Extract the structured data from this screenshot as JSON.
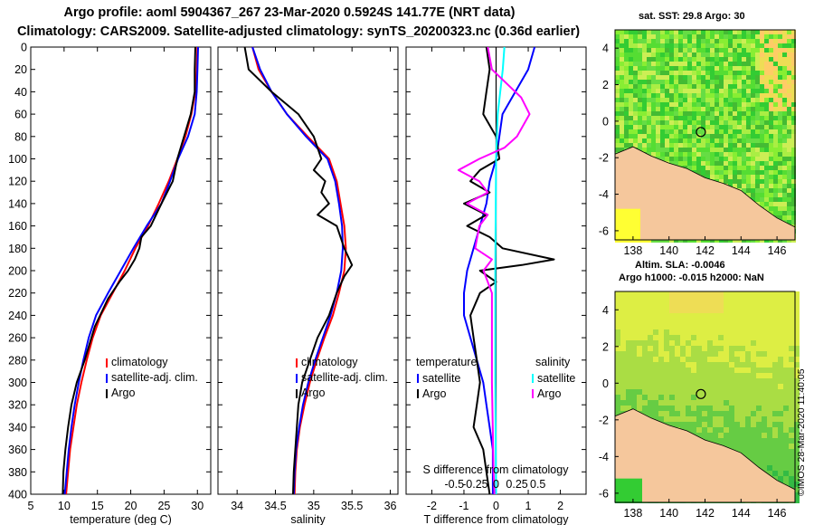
{
  "titles": {
    "line1": "Argo profile: aoml 5904367_267 23-Mar-2020 0.5924S 141.77E (NRT data)",
    "line2": "Climatology: CARS2009. Satellite-adjusted climatology: synTS_20200323.nc (0.36d earlier)"
  },
  "colors": {
    "climatology": "#ff0000",
    "satellite": "#0000ff",
    "argo": "#000000",
    "argo_sal_diff": "#ff00ff",
    "satellite_sal_diff": "#00ffff",
    "land": "#f5c79c"
  },
  "chart_data": [
    {
      "type": "line",
      "name": "temperature",
      "xlabel": "temperature (deg C)",
      "ylabel": "depth",
      "xlim": [
        5,
        32
      ],
      "ylim": [
        400,
        0
      ],
      "xticks": [
        5,
        10,
        15,
        20,
        25,
        30
      ],
      "yticks": [
        0,
        20,
        40,
        60,
        80,
        100,
        120,
        140,
        160,
        180,
        200,
        220,
        240,
        260,
        280,
        300,
        320,
        340,
        360,
        380,
        400
      ],
      "legend": [
        "climatology",
        "satellite-adj. clim.",
        "Argo"
      ],
      "series": [
        {
          "name": "climatology",
          "color": "#ff0000",
          "points": [
            [
              30.0,
              0
            ],
            [
              29.9,
              20
            ],
            [
              29.7,
              40
            ],
            [
              29.1,
              60
            ],
            [
              28.2,
              80
            ],
            [
              27.0,
              100
            ],
            [
              25.7,
              120
            ],
            [
              24.2,
              140
            ],
            [
              22.6,
              160
            ],
            [
              20.7,
              180
            ],
            [
              19.1,
              200
            ],
            [
              17.3,
              220
            ],
            [
              15.5,
              240
            ],
            [
              14.3,
              260
            ],
            [
              13.4,
              280
            ],
            [
              12.6,
              300
            ],
            [
              11.9,
              320
            ],
            [
              11.4,
              340
            ],
            [
              10.9,
              360
            ],
            [
              10.6,
              380
            ],
            [
              10.3,
              400
            ]
          ]
        },
        {
          "name": "satellite-adj. clim.",
          "color": "#0000ff",
          "points": [
            [
              30.1,
              0
            ],
            [
              30.0,
              20
            ],
            [
              29.9,
              40
            ],
            [
              29.6,
              60
            ],
            [
              28.6,
              80
            ],
            [
              27.1,
              100
            ],
            [
              25.9,
              120
            ],
            [
              24.6,
              140
            ],
            [
              22.4,
              160
            ],
            [
              20.4,
              180
            ],
            [
              18.5,
              200
            ],
            [
              16.6,
              220
            ],
            [
              14.8,
              240
            ],
            [
              13.7,
              260
            ],
            [
              12.9,
              280
            ],
            [
              12.2,
              300
            ],
            [
              11.6,
              320
            ],
            [
              11.1,
              340
            ],
            [
              10.7,
              360
            ],
            [
              10.4,
              380
            ],
            [
              10.1,
              400
            ]
          ]
        },
        {
          "name": "Argo",
          "color": "#000000",
          "points": [
            [
              29.7,
              0
            ],
            [
              29.6,
              20
            ],
            [
              29.6,
              40
            ],
            [
              29.0,
              60
            ],
            [
              28.0,
              80
            ],
            [
              27.0,
              100
            ],
            [
              26.3,
              120
            ],
            [
              24.6,
              140
            ],
            [
              23.0,
              160
            ],
            [
              21.6,
              170
            ],
            [
              21.3,
              180
            ],
            [
              20.6,
              190
            ],
            [
              19.6,
              200
            ],
            [
              18.3,
              210
            ],
            [
              16.6,
              225
            ],
            [
              14.6,
              250
            ],
            [
              13.1,
              280
            ],
            [
              11.9,
              300
            ],
            [
              11.1,
              320
            ],
            [
              10.6,
              340
            ],
            [
              10.2,
              360
            ],
            [
              9.9,
              380
            ],
            [
              9.8,
              400
            ]
          ]
        }
      ]
    },
    {
      "type": "line",
      "name": "salinity",
      "xlabel": "salinity",
      "xlim": [
        33.75,
        36.1
      ],
      "ylim": [
        400,
        0
      ],
      "xticks": [
        34,
        34.5,
        35,
        35.5,
        36
      ],
      "legend": [
        "climatology",
        "satellite-adj. clim.",
        "Argo"
      ],
      "series": [
        {
          "name": "climatology",
          "color": "#ff0000",
          "points": [
            [
              34.2,
              0
            ],
            [
              34.28,
              20
            ],
            [
              34.45,
              40
            ],
            [
              34.65,
              60
            ],
            [
              34.92,
              80
            ],
            [
              35.2,
              100
            ],
            [
              35.3,
              120
            ],
            [
              35.35,
              140
            ],
            [
              35.4,
              160
            ],
            [
              35.42,
              180
            ],
            [
              35.4,
              200
            ],
            [
              35.33,
              220
            ],
            [
              35.25,
              240
            ],
            [
              35.14,
              260
            ],
            [
              35.04,
              280
            ],
            [
              34.95,
              300
            ],
            [
              34.88,
              320
            ],
            [
              34.82,
              340
            ],
            [
              34.78,
              360
            ],
            [
              34.76,
              380
            ],
            [
              34.75,
              400
            ]
          ]
        },
        {
          "name": "satellite-adj. clim.",
          "color": "#0000ff",
          "points": [
            [
              34.2,
              0
            ],
            [
              34.3,
              20
            ],
            [
              34.45,
              40
            ],
            [
              34.65,
              60
            ],
            [
              34.9,
              80
            ],
            [
              35.18,
              100
            ],
            [
              35.28,
              120
            ],
            [
              35.33,
              140
            ],
            [
              35.37,
              160
            ],
            [
              35.38,
              180
            ],
            [
              35.36,
              200
            ],
            [
              35.3,
              220
            ],
            [
              35.22,
              240
            ],
            [
              35.12,
              260
            ],
            [
              35.02,
              280
            ],
            [
              34.93,
              300
            ],
            [
              34.86,
              320
            ],
            [
              34.81,
              340
            ],
            [
              34.77,
              360
            ],
            [
              34.75,
              380
            ],
            [
              34.74,
              400
            ]
          ]
        },
        {
          "name": "Argo",
          "color": "#000000",
          "points": [
            [
              34.1,
              0
            ],
            [
              34.15,
              20
            ],
            [
              34.45,
              40
            ],
            [
              34.8,
              60
            ],
            [
              35.0,
              80
            ],
            [
              35.05,
              90
            ],
            [
              35.1,
              100
            ],
            [
              35.0,
              110
            ],
            [
              35.15,
              120
            ],
            [
              35.1,
              130
            ],
            [
              35.2,
              140
            ],
            [
              35.05,
              150
            ],
            [
              35.3,
              160
            ],
            [
              35.35,
              170
            ],
            [
              35.4,
              180
            ],
            [
              35.5,
              195
            ],
            [
              35.4,
              205
            ],
            [
              35.3,
              220
            ],
            [
              35.2,
              240
            ],
            [
              35.05,
              260
            ],
            [
              34.95,
              280
            ],
            [
              34.85,
              300
            ],
            [
              34.8,
              320
            ],
            [
              34.78,
              340
            ],
            [
              34.76,
              360
            ],
            [
              34.74,
              380
            ],
            [
              34.73,
              400
            ]
          ]
        }
      ]
    },
    {
      "type": "line",
      "name": "difference",
      "xlabel": "T difference from climatology",
      "xlim": [
        -2.8,
        2.8
      ],
      "ylim": [
        400,
        0
      ],
      "xticks": [
        -2,
        -1,
        0,
        1,
        2
      ],
      "secondary_axis": {
        "label": "S difference from climatology",
        "ticks": [
          -0.5,
          -0.25,
          0,
          0.25,
          0.5
        ]
      },
      "legend_temperature": {
        "title": "temperature",
        "entries": [
          "satellite",
          "Argo"
        ]
      },
      "legend_salinity": {
        "title": "salinity",
        "entries": [
          "satellite",
          "Argo"
        ]
      },
      "series": [
        {
          "name": "temperature satellite",
          "color": "#0000ff",
          "points": [
            [
              1.2,
              0
            ],
            [
              1.0,
              20
            ],
            [
              0.6,
              40
            ],
            [
              0.2,
              60
            ],
            [
              0.1,
              80
            ],
            [
              0.0,
              100
            ],
            [
              -0.2,
              120
            ],
            [
              -0.3,
              140
            ],
            [
              -0.5,
              160
            ],
            [
              -0.7,
              180
            ],
            [
              -0.9,
              200
            ],
            [
              -1.0,
              220
            ],
            [
              -1.0,
              240
            ],
            [
              -0.8,
              260
            ],
            [
              -0.6,
              280
            ],
            [
              -0.4,
              300
            ],
            [
              -0.3,
              320
            ],
            [
              -0.2,
              340
            ],
            [
              -0.1,
              360
            ],
            [
              -0.1,
              380
            ],
            [
              -0.1,
              400
            ]
          ]
        },
        {
          "name": "temperature Argo",
          "color": "#000000",
          "points": [
            [
              -0.3,
              0
            ],
            [
              -0.2,
              20
            ],
            [
              -0.3,
              40
            ],
            [
              -0.4,
              60
            ],
            [
              0.0,
              80
            ],
            [
              0.1,
              100
            ],
            [
              -0.5,
              110
            ],
            [
              -0.8,
              120
            ],
            [
              -0.2,
              130
            ],
            [
              -1.0,
              140
            ],
            [
              -0.3,
              150
            ],
            [
              -0.9,
              160
            ],
            [
              -0.2,
              170
            ],
            [
              0.2,
              180
            ],
            [
              1.8,
              190
            ],
            [
              0.8,
              195
            ],
            [
              -0.5,
              200
            ],
            [
              0.0,
              210
            ],
            [
              -0.5,
              220
            ],
            [
              -0.8,
              240
            ],
            [
              -0.7,
              260
            ],
            [
              -0.6,
              280
            ],
            [
              -0.5,
              300
            ],
            [
              -0.6,
              320
            ],
            [
              -0.7,
              340
            ],
            [
              -0.4,
              360
            ],
            [
              -0.3,
              380
            ],
            [
              -0.2,
              400
            ]
          ]
        },
        {
          "name": "salinity satellite",
          "color": "#00ffff",
          "points": [
            [
              0.1,
              0
            ],
            [
              0.08,
              20
            ],
            [
              0.05,
              40
            ],
            [
              0.02,
              60
            ],
            [
              0.0,
              100
            ],
            [
              -0.01,
              200
            ],
            [
              -0.01,
              300
            ],
            [
              0.0,
              400
            ]
          ]
        },
        {
          "name": "salinity Argo",
          "color": "#ff00ff",
          "points": [
            [
              -0.1,
              0
            ],
            [
              -0.05,
              20
            ],
            [
              0.3,
              45
            ],
            [
              0.4,
              60
            ],
            [
              0.25,
              80
            ],
            [
              0.1,
              90
            ],
            [
              -0.2,
              100
            ],
            [
              -0.45,
              110
            ],
            [
              -0.2,
              120
            ],
            [
              -0.1,
              130
            ],
            [
              -0.35,
              140
            ],
            [
              -0.1,
              150
            ],
            [
              -0.2,
              160
            ],
            [
              -0.25,
              180
            ],
            [
              -0.05,
              190
            ],
            [
              -0.15,
              200
            ],
            [
              -0.05,
              220
            ],
            [
              -0.05,
              260
            ],
            [
              -0.05,
              300
            ],
            [
              -0.04,
              340
            ],
            [
              -0.03,
              380
            ],
            [
              -0.02,
              400
            ]
          ]
        }
      ]
    },
    {
      "type": "heatmap",
      "name": "sst-map",
      "title": "sat. SST: 29.8 Argo: 30",
      "xlim": [
        137,
        147
      ],
      "ylim": [
        -6.5,
        5
      ],
      "xticks": [
        138,
        140,
        142,
        144,
        146
      ],
      "yticks": [
        -6,
        -4,
        -2,
        0,
        2,
        4
      ],
      "argo_position": [
        141.77,
        -0.5924
      ]
    },
    {
      "type": "heatmap",
      "name": "sla-map",
      "title1": "Altim. SLA: -0.0046",
      "title2": "Argo h1000: -0.015 h2000: NaN",
      "xlim": [
        137,
        147
      ],
      "ylim": [
        -6.5,
        5
      ],
      "xticks": [
        138,
        140,
        142,
        144,
        146
      ],
      "yticks": [
        -6,
        -4,
        -2,
        0,
        2,
        4
      ],
      "argo_position": [
        141.77,
        -0.5924
      ]
    }
  ],
  "side_label": "©IMOS 28-Mar-2020 11:40:05"
}
